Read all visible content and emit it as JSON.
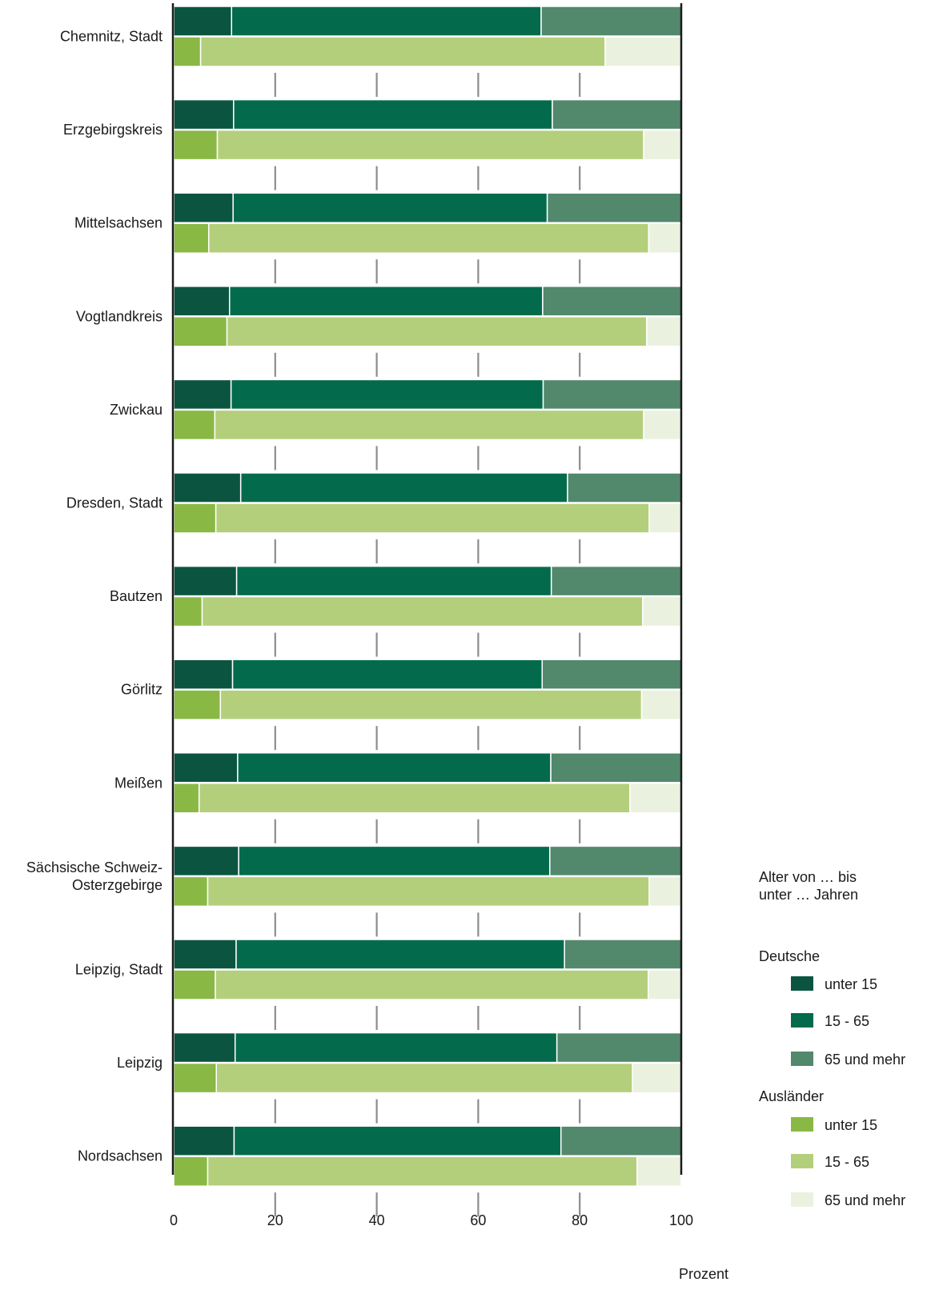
{
  "chart_data": {
    "type": "bar",
    "orientation": "horizontal",
    "stacked": true,
    "categories": [
      "Chemnitz, Stadt",
      "Erzgebirgskreis",
      "Mittelsachsen",
      "Vogtlandkreis",
      "Zwickau",
      "Dresden, Stadt",
      "Bautzen",
      "Görlitz",
      "Meißen",
      "Sächsische Schweiz-\nOsterzgebirge",
      "Leipzig, Stadt",
      "Leipzig",
      "Nordsachsen"
    ],
    "groups": [
      {
        "name": "Deutsche",
        "series": [
          {
            "name": "unter 15",
            "color": "#0b5540",
            "values": [
              11.4,
              11.8,
              11.7,
              11.0,
              11.3,
              13.2,
              12.4,
              11.6,
              12.6,
              12.8,
              12.3,
              12.1,
              11.9
            ]
          },
          {
            "name": "15 - 65",
            "color": "#036b4c",
            "values": [
              61.0,
              62.8,
              61.9,
              61.7,
              61.5,
              64.4,
              62.0,
              61.0,
              61.7,
              61.3,
              64.7,
              63.4,
              64.4
            ]
          },
          {
            "name": "65 und mehr",
            "color": "#52886c",
            "values": [
              27.6,
              25.4,
              26.4,
              27.3,
              27.2,
              22.4,
              25.6,
              27.4,
              25.7,
              25.9,
              23.0,
              24.5,
              23.7
            ]
          }
        ]
      },
      {
        "name": "Ausländer",
        "series": [
          {
            "name": "unter 15",
            "color": "#8ab845",
            "values": [
              5.3,
              8.6,
              6.9,
              10.5,
              8.1,
              8.3,
              5.6,
              9.2,
              5.0,
              6.7,
              8.2,
              8.4,
              6.7
            ]
          },
          {
            "name": "15 - 65",
            "color": "#b4cf7b",
            "values": [
              79.7,
              84.0,
              86.7,
              82.7,
              84.5,
              85.4,
              86.8,
              83.0,
              84.9,
              87.0,
              85.3,
              82.0,
              84.6
            ]
          },
          {
            "name": "65 und mehr",
            "color": "#ebf1df",
            "values": [
              15.0,
              7.4,
              6.4,
              6.8,
              7.4,
              6.3,
              7.6,
              7.8,
              10.1,
              6.3,
              6.5,
              9.6,
              8.7
            ]
          }
        ]
      }
    ],
    "xlim": [
      0,
      100
    ],
    "xticks": [
      0,
      20,
      40,
      60,
      80,
      100
    ],
    "xlabel": "Prozent",
    "grid": true,
    "legend": {
      "position": "right",
      "title": "Alter von … bis\nunter … Jahren"
    }
  }
}
